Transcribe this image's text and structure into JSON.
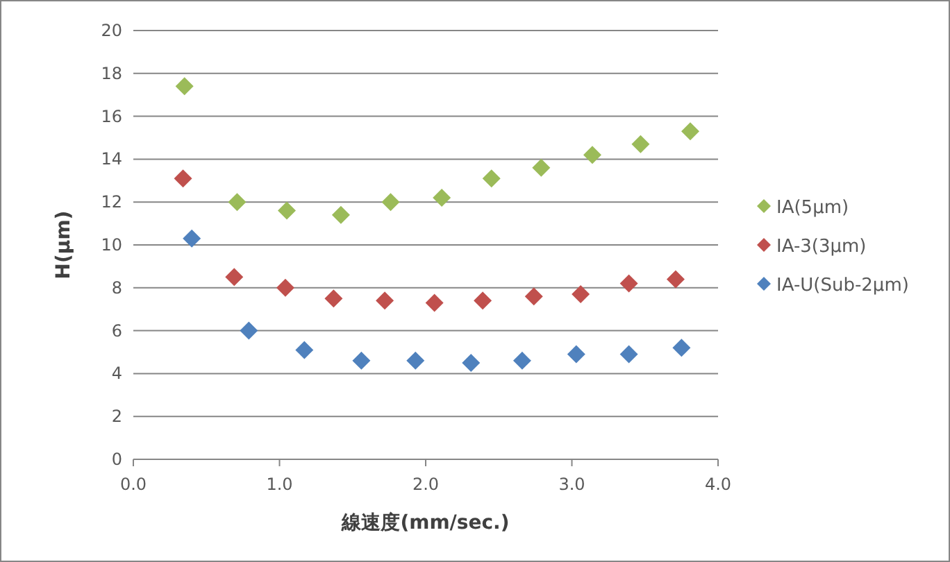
{
  "chart_data": {
    "type": "scatter",
    "xlabel": "線速度(mm/sec.)",
    "ylabel": "H(µm)",
    "xlim": [
      0,
      4
    ],
    "ylim": [
      0,
      20
    ],
    "xticks": [
      {
        "value": 0,
        "label": "0.0"
      },
      {
        "value": 1,
        "label": "1.0"
      },
      {
        "value": 2,
        "label": "2.0"
      },
      {
        "value": 3,
        "label": "3.0"
      },
      {
        "value": 4,
        "label": "4.0"
      }
    ],
    "yticks": [
      0,
      2,
      4,
      6,
      8,
      10,
      12,
      14,
      16,
      18,
      20
    ],
    "grid": "y",
    "legend": "right",
    "marker": "diamond",
    "series": [
      {
        "name": "IA(5µm)",
        "color": "#9bbb59",
        "x": [
          0.35,
          0.71,
          1.05,
          1.42,
          1.76,
          2.11,
          2.45,
          2.79,
          3.14,
          3.47,
          3.81
        ],
        "values": [
          17.4,
          12.0,
          11.6,
          11.4,
          12.0,
          12.2,
          13.1,
          13.6,
          14.2,
          14.7,
          15.3
        ]
      },
      {
        "name": "IA-3(3µm)",
        "color": "#c0504d",
        "x": [
          0.34,
          0.69,
          1.04,
          1.37,
          1.72,
          2.06,
          2.39,
          2.74,
          3.06,
          3.39,
          3.71
        ],
        "values": [
          13.1,
          8.5,
          8.0,
          7.5,
          7.4,
          7.3,
          7.4,
          7.6,
          7.7,
          8.2,
          8.4
        ]
      },
      {
        "name": "IA-U(Sub-2µm)",
        "color": "#4f81bd",
        "x": [
          0.4,
          0.79,
          1.17,
          1.56,
          1.93,
          2.31,
          2.66,
          3.03,
          3.39,
          3.75
        ],
        "values": [
          10.3,
          6.0,
          5.1,
          4.6,
          4.6,
          4.5,
          4.6,
          4.9,
          4.9,
          5.2
        ]
      }
    ]
  }
}
